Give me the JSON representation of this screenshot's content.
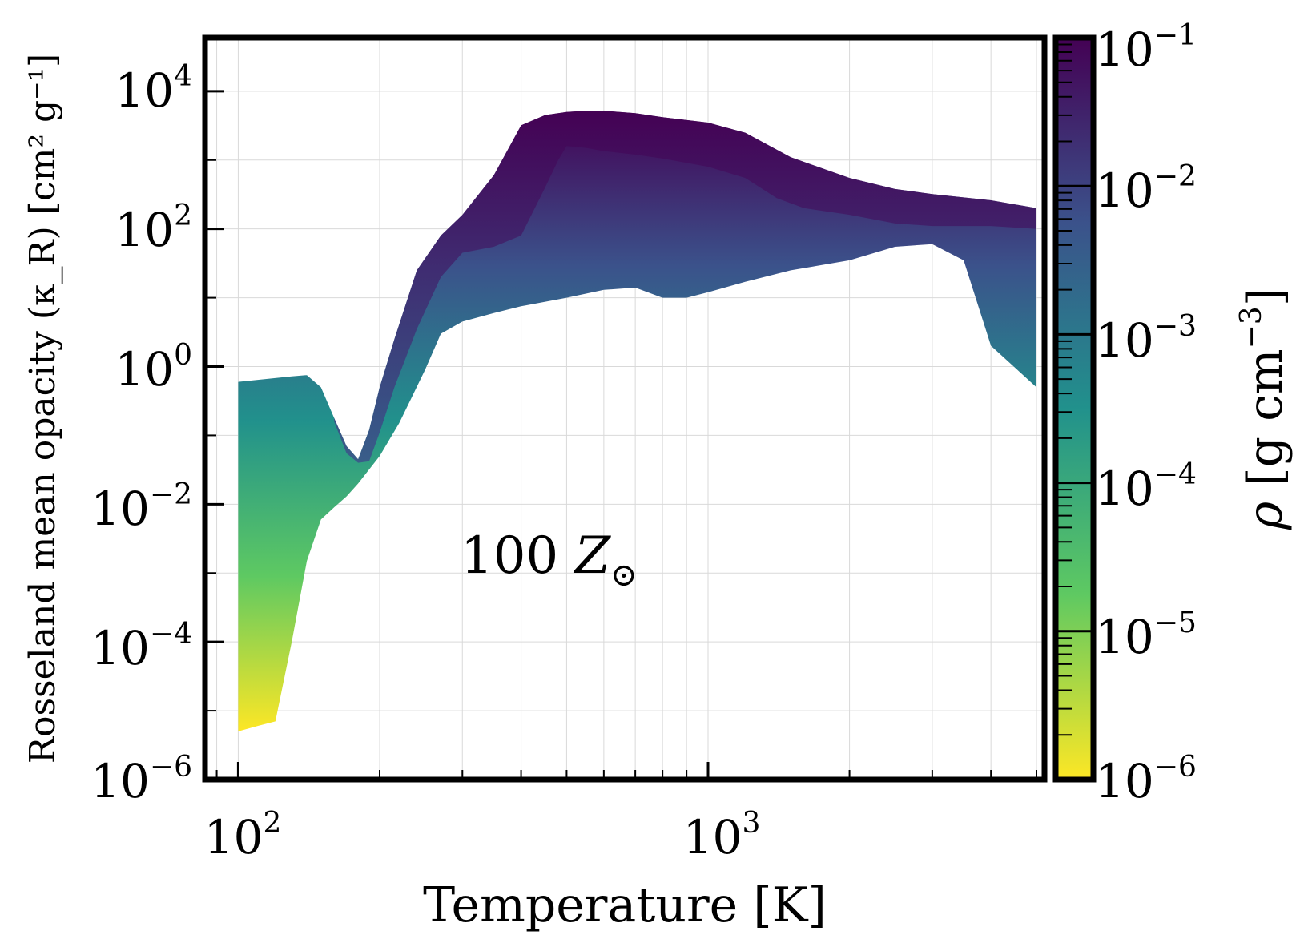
{
  "chart_data": {
    "type": "area",
    "title": "",
    "xlabel": "Temperature [K]",
    "ylabel": "Rosseland mean opacity (κ_R) [cm² g⁻¹]",
    "xscale": "log",
    "yscale": "log",
    "xlim": [
      85,
      5200
    ],
    "ylim": [
      1e-06,
      60000
    ],
    "grid": true,
    "annotation": {
      "base": "100 ",
      "symbol": "Z",
      "subscript": "⊙"
    },
    "x_ticks": [
      {
        "base": "10",
        "exp": "2"
      },
      {
        "base": "10",
        "exp": "3"
      }
    ],
    "y_ticks": [
      {
        "base": "10",
        "exp": "4"
      },
      {
        "base": "10",
        "exp": "2"
      },
      {
        "base": "10",
        "exp": "0"
      },
      {
        "base": "10",
        "exp": "−2"
      },
      {
        "base": "10",
        "exp": "−4"
      },
      {
        "base": "10",
        "exp": "−6"
      }
    ],
    "colorbar": {
      "label_symbol": "ρ",
      "label_units": "[g cm",
      "label_exp": "−3",
      "label_close": "]",
      "colormap": "viridis",
      "range": [
        1e-06,
        0.1
      ],
      "ticks": [
        {
          "base": "10",
          "exp": "−1"
        },
        {
          "base": "10",
          "exp": "−2"
        },
        {
          "base": "10",
          "exp": "−3"
        },
        {
          "base": "10",
          "exp": "−4"
        },
        {
          "base": "10",
          "exp": "−5"
        },
        {
          "base": "10",
          "exp": "−6"
        }
      ],
      "stops": [
        "#fde725",
        "#5ec962",
        "#21918c",
        "#3b528b",
        "#440154"
      ]
    },
    "series": [
      {
        "name": "ρ = 1e-1 g cm^-3 (upper envelope)",
        "x": [
          100,
          130,
          140,
          150,
          160,
          170,
          180,
          190,
          200,
          215,
          240,
          270,
          300,
          350,
          400,
          450,
          500,
          550,
          600,
          700,
          800,
          1000,
          1200,
          1500,
          2000,
          2500,
          3000,
          4000,
          5000
        ],
        "y": [
          0.6,
          0.72,
          0.75,
          0.5,
          0.18,
          0.07,
          0.045,
          0.12,
          0.5,
          2.5,
          25,
          80,
          160,
          600,
          3200,
          4500,
          5000,
          5200,
          5200,
          4800,
          4200,
          3500,
          2500,
          1100,
          550,
          380,
          320,
          260,
          200
        ]
      },
      {
        "name": "ρ = 1e-1 g cm^-3 (lower ridge)",
        "x": [
          160,
          170,
          180,
          190,
          200,
          215,
          240,
          270,
          300,
          350,
          400,
          450,
          480,
          500,
          550,
          600,
          700,
          800,
          1000,
          1200,
          1400,
          1600,
          2000,
          2500,
          3000,
          4000,
          5000
        ],
        "y": [
          0.16,
          0.055,
          0.04,
          0.042,
          0.11,
          0.5,
          3.5,
          20,
          45,
          55,
          80,
          400,
          1000,
          1600,
          1500,
          1350,
          1200,
          1050,
          800,
          550,
          280,
          200,
          160,
          120,
          110,
          110,
          100
        ]
      },
      {
        "name": "ρ = 1e-6 g cm^-3 (lower envelope)",
        "x": [
          100,
          110,
          120,
          130,
          140,
          150,
          160,
          170,
          180,
          200,
          220,
          250,
          270,
          300,
          350,
          400,
          500,
          600,
          700,
          800,
          900,
          1000,
          1200,
          1500,
          2000,
          2500,
          3000,
          3500,
          4000,
          5000
        ],
        "y": [
          5e-06,
          6e-06,
          7e-06,
          0.0001,
          0.0015,
          0.006,
          0.009,
          0.013,
          0.02,
          0.05,
          0.15,
          0.9,
          3,
          4.5,
          6,
          7.5,
          10,
          13,
          14,
          10,
          10,
          12,
          17,
          25,
          35,
          55,
          60,
          35,
          2,
          0.5
        ]
      }
    ]
  }
}
